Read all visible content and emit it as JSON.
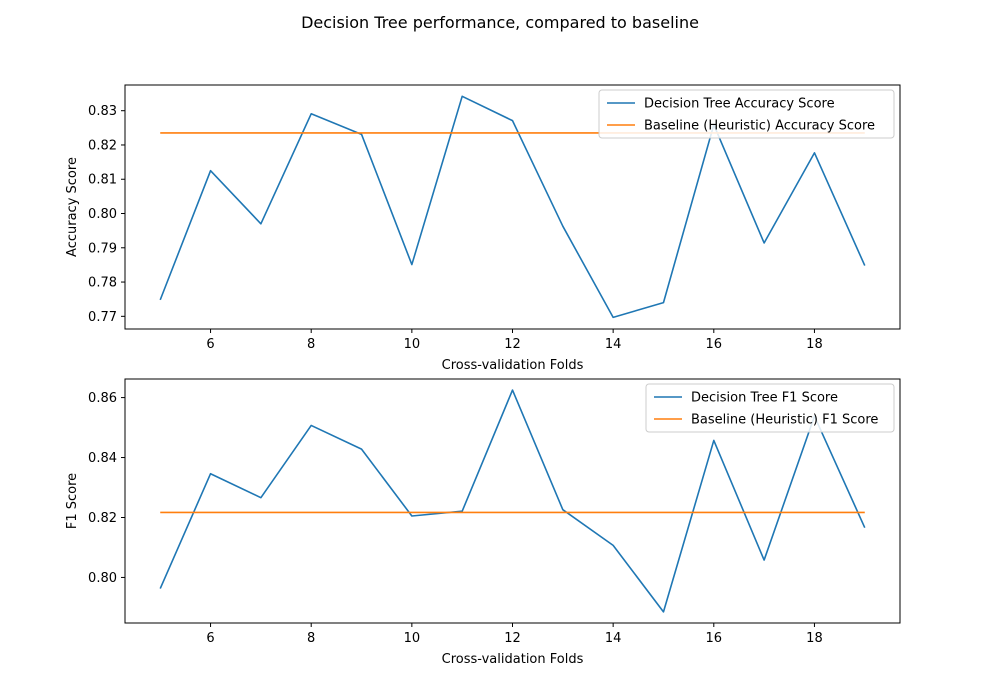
{
  "figure": {
    "title": "Decision Tree performance, compared to baseline"
  },
  "colors": {
    "model": "#1f77b4",
    "baseline": "#ff7f0e"
  },
  "chart_data": [
    {
      "type": "line",
      "title": "",
      "xlabel": "Cross-validation Folds",
      "ylabel": "Accuracy Score",
      "xlim": [
        4.3,
        19.7
      ],
      "ylim": [
        0.7663,
        0.8375
      ],
      "x_ticks": [
        6,
        8,
        10,
        12,
        14,
        16,
        18
      ],
      "y_ticks": [
        0.77,
        0.78,
        0.79,
        0.8,
        0.81,
        0.82,
        0.83
      ],
      "y_tick_labels": [
        "0.77",
        "0.78",
        "0.79",
        "0.80",
        "0.81",
        "0.82",
        "0.83"
      ],
      "grid": false,
      "legend_position": "top-right",
      "x": [
        5,
        6,
        7,
        8,
        9,
        10,
        11,
        12,
        13,
        14,
        15,
        16,
        17,
        18,
        19
      ],
      "series": [
        {
          "name": "Decision Tree Accuracy Score",
          "color": "#1f77b4",
          "values": [
            0.7748,
            0.8125,
            0.797,
            0.8291,
            0.8231,
            0.7851,
            0.8342,
            0.8271,
            0.7963,
            0.7697,
            0.774,
            0.8259,
            0.7914,
            0.8177,
            0.7848
          ]
        },
        {
          "name": "Baseline (Heuristic) Accuracy Score",
          "color": "#ff7f0e",
          "values": [
            0.8235,
            0.8235,
            0.8235,
            0.8235,
            0.8235,
            0.8235,
            0.8235,
            0.8235,
            0.8235,
            0.8235,
            0.8235,
            0.8235,
            0.8235,
            0.8235,
            0.8235
          ]
        }
      ]
    },
    {
      "type": "line",
      "title": "",
      "xlabel": "Cross-validation Folds",
      "ylabel": "F1 Score",
      "xlim": [
        4.3,
        19.7
      ],
      "ylim": [
        0.7848,
        0.8662
      ],
      "x_ticks": [
        6,
        8,
        10,
        12,
        14,
        16,
        18
      ],
      "y_ticks": [
        0.8,
        0.82,
        0.84,
        0.86
      ],
      "y_tick_labels": [
        "0.80",
        "0.82",
        "0.84",
        "0.86"
      ],
      "grid": false,
      "legend_position": "top-right",
      "x": [
        5,
        6,
        7,
        8,
        9,
        10,
        11,
        12,
        13,
        14,
        15,
        16,
        17,
        18,
        19
      ],
      "series": [
        {
          "name": "Decision Tree F1 Score",
          "color": "#1f77b4",
          "values": [
            0.7963,
            0.8346,
            0.8266,
            0.8507,
            0.8428,
            0.8205,
            0.8221,
            0.8625,
            0.8226,
            0.8107,
            0.7885,
            0.8457,
            0.8058,
            0.8538,
            0.8166
          ]
        },
        {
          "name": "Baseline (Heuristic) F1 Score",
          "color": "#ff7f0e",
          "values": [
            0.8217,
            0.8217,
            0.8217,
            0.8217,
            0.8217,
            0.8217,
            0.8217,
            0.8217,
            0.8217,
            0.8217,
            0.8217,
            0.8217,
            0.8217,
            0.8217,
            0.8217
          ]
        }
      ]
    }
  ]
}
